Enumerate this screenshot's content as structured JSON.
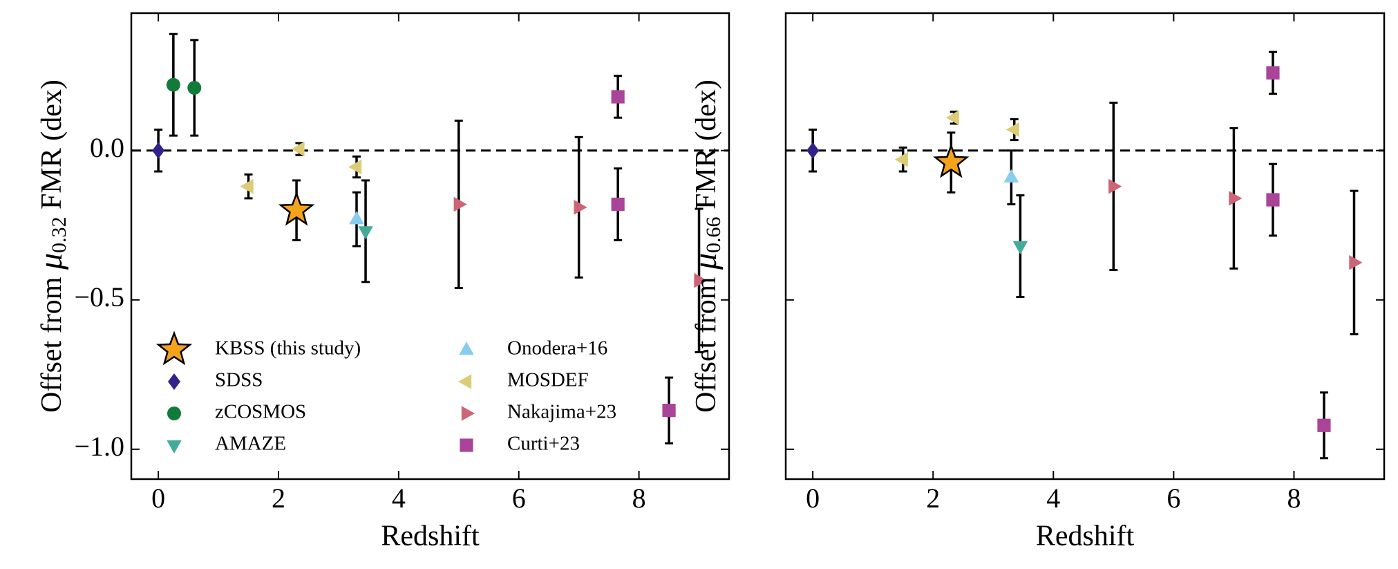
{
  "chart_data": [
    {
      "type": "scatter",
      "xlabel": "Redshift",
      "ylabel": [
        "Offset from ",
        "μ",
        "0.32",
        " FMR (dex)"
      ],
      "xlim": [
        -0.45,
        9.5
      ],
      "ylim": [
        -1.1,
        0.46
      ],
      "xticks": [
        0,
        2,
        4,
        6,
        8
      ],
      "yticks": [
        {
          "value": 0,
          "label": "0.0"
        },
        {
          "value": -0.5,
          "label": "−0.5"
        },
        {
          "value": -1,
          "label": "−1.0"
        }
      ],
      "hline": 0,
      "legend": "lower left",
      "series": [
        {
          "name": "KBSS (this study)",
          "color": "#f5a31a",
          "marker": "star",
          "x": [
            2.3
          ],
          "values": [
            -0.2
          ],
          "errors": [
            0.1
          ]
        },
        {
          "name": "SDSS",
          "color": "#33228a",
          "marker": "diamond",
          "x": [
            0
          ],
          "values": [
            0
          ],
          "errors": [
            0.07
          ]
        },
        {
          "name": "zCOSMOS",
          "color": "#127a3a",
          "marker": "circle",
          "x": [
            0.25,
            0.6
          ],
          "values": [
            0.22,
            0.21
          ],
          "errors": [
            0.17,
            0.16
          ]
        },
        {
          "name": "AMAZE",
          "color": "#44aa99",
          "marker": "tri-down",
          "x": [
            3.45
          ],
          "values": [
            -0.27
          ],
          "errors": [
            0.17
          ]
        },
        {
          "name": "Onodera+16",
          "color": "#88ccee",
          "marker": "tri-up",
          "x": [
            3.3
          ],
          "values": [
            -0.23
          ],
          "errors": [
            0.09
          ]
        },
        {
          "name": "MOSDEF",
          "color": "#ddcc77",
          "marker": "tri-left",
          "x": [
            1.5,
            2.35,
            3.3
          ],
          "values": [
            -0.12,
            0.005,
            -0.055
          ],
          "errors": [
            0.04,
            0.02,
            0.035
          ]
        },
        {
          "name": "Nakajima+23",
          "color": "#cc6677",
          "marker": "tri-right",
          "x": [
            5.0,
            7.0,
            9.0
          ],
          "values": [
            -0.18,
            -0.19,
            -0.435
          ],
          "errors": [
            0.28,
            0.235,
            0.24
          ]
        },
        {
          "name": "Curti+23",
          "color": "#aa4499",
          "marker": "square",
          "x": [
            7.65,
            7.65,
            8.5
          ],
          "values": [
            0.18,
            -0.18,
            -0.87
          ],
          "errors": [
            0.07,
            0.12,
            0.11
          ]
        }
      ]
    },
    {
      "type": "scatter",
      "xlabel": "Redshift",
      "ylabel": [
        "Offset from ",
        "μ",
        "0.66",
        " FMR (dex)"
      ],
      "xlim": [
        -0.45,
        9.5
      ],
      "ylim": [
        -1.1,
        0.46
      ],
      "xticks": [
        0,
        2,
        4,
        6,
        8
      ],
      "yticks": [
        0,
        -0.5,
        -1
      ],
      "ytick_labels": false,
      "hline": 0,
      "series": [
        {
          "name": "KBSS (this study)",
          "color": "#f5a31a",
          "marker": "star",
          "x": [
            2.3
          ],
          "values": [
            -0.04
          ],
          "errors": [
            0.1
          ]
        },
        {
          "name": "SDSS",
          "color": "#33228a",
          "marker": "diamond",
          "x": [
            0
          ],
          "values": [
            0
          ],
          "errors": [
            0.07
          ]
        },
        {
          "name": "AMAZE",
          "color": "#44aa99",
          "marker": "tri-down",
          "x": [
            3.45
          ],
          "values": [
            -0.32
          ],
          "errors": [
            0.17
          ]
        },
        {
          "name": "Onodera+16",
          "color": "#88ccee",
          "marker": "tri-up",
          "x": [
            3.3
          ],
          "values": [
            -0.09
          ],
          "errors": [
            0.09
          ]
        },
        {
          "name": "MOSDEF",
          "color": "#ddcc77",
          "marker": "tri-left",
          "x": [
            1.5,
            2.35,
            3.35
          ],
          "values": [
            -0.03,
            0.11,
            0.07
          ],
          "errors": [
            0.04,
            0.02,
            0.035
          ]
        },
        {
          "name": "Nakajima+23",
          "color": "#cc6677",
          "marker": "tri-right",
          "x": [
            5.0,
            7.0,
            9.0
          ],
          "values": [
            -0.12,
            -0.16,
            -0.375
          ],
          "errors": [
            0.28,
            0.235,
            0.24
          ]
        },
        {
          "name": "Curti+23",
          "color": "#aa4499",
          "marker": "square",
          "x": [
            7.65,
            7.65,
            8.5
          ],
          "values": [
            0.26,
            -0.165,
            -0.92
          ],
          "errors": [
            0.07,
            0.12,
            0.11
          ]
        }
      ]
    }
  ]
}
